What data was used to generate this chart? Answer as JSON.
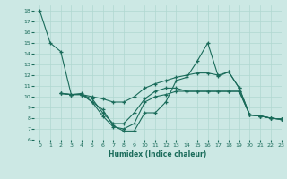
{
  "title": "",
  "xlabel": "Humidex (Indice chaleur)",
  "bg_color": "#cce8e4",
  "line_color": "#1a6b5a",
  "grid_color": "#b0d8d0",
  "xlim": [
    -0.5,
    23
  ],
  "ylim": [
    6,
    18.5
  ],
  "xticks": [
    0,
    1,
    2,
    3,
    4,
    5,
    6,
    7,
    8,
    9,
    10,
    11,
    12,
    13,
    14,
    15,
    16,
    17,
    18,
    19,
    20,
    21,
    22,
    23
  ],
  "yticks": [
    6,
    7,
    8,
    9,
    10,
    11,
    12,
    13,
    14,
    15,
    16,
    17,
    18
  ],
  "lines": [
    {
      "x": [
        0,
        1,
        2,
        3,
        4,
        5,
        6,
        7,
        8,
        9,
        10,
        11,
        12,
        13,
        14,
        15,
        16,
        17,
        18,
        19,
        20,
        21,
        22,
        23
      ],
      "y": [
        18,
        15,
        14.2,
        10.2,
        10.3,
        9.5,
        8.8,
        7.3,
        6.8,
        6.8,
        8.5,
        8.5,
        9.5,
        11.5,
        11.8,
        13.3,
        15.0,
        11.9,
        12.3,
        10.8,
        8.3,
        8.2,
        8.0,
        7.9
      ]
    },
    {
      "x": [
        2,
        3,
        4,
        5,
        6,
        7,
        8,
        9,
        10,
        11,
        12,
        13,
        14,
        15,
        16,
        17,
        18,
        19,
        20,
        21,
        22,
        23
      ],
      "y": [
        10.3,
        10.2,
        10.2,
        10.0,
        9.8,
        9.5,
        9.5,
        10.0,
        10.8,
        11.2,
        11.5,
        11.8,
        12.0,
        12.2,
        12.2,
        12.0,
        12.3,
        10.8,
        8.3,
        8.2,
        8.0,
        7.9
      ]
    },
    {
      "x": [
        2,
        3,
        4,
        5,
        6,
        7,
        8,
        9,
        10,
        11,
        12,
        13,
        14,
        15,
        16,
        17,
        18,
        19,
        20,
        21,
        22,
        23
      ],
      "y": [
        10.3,
        10.2,
        10.2,
        9.8,
        8.5,
        7.5,
        7.5,
        8.5,
        9.8,
        10.5,
        10.8,
        10.8,
        10.5,
        10.5,
        10.5,
        10.5,
        10.5,
        10.5,
        8.3,
        8.2,
        8.0,
        7.9
      ]
    },
    {
      "x": [
        2,
        3,
        4,
        5,
        6,
        7,
        8,
        9,
        10,
        11,
        12,
        13,
        14,
        15,
        16,
        17,
        18,
        19,
        20,
        21,
        22,
        23
      ],
      "y": [
        10.3,
        10.2,
        10.2,
        9.5,
        8.2,
        7.2,
        7.0,
        7.5,
        9.5,
        10.0,
        10.2,
        10.5,
        10.5,
        10.5,
        10.5,
        10.5,
        10.5,
        10.5,
        8.3,
        8.2,
        8.0,
        7.9
      ]
    }
  ]
}
